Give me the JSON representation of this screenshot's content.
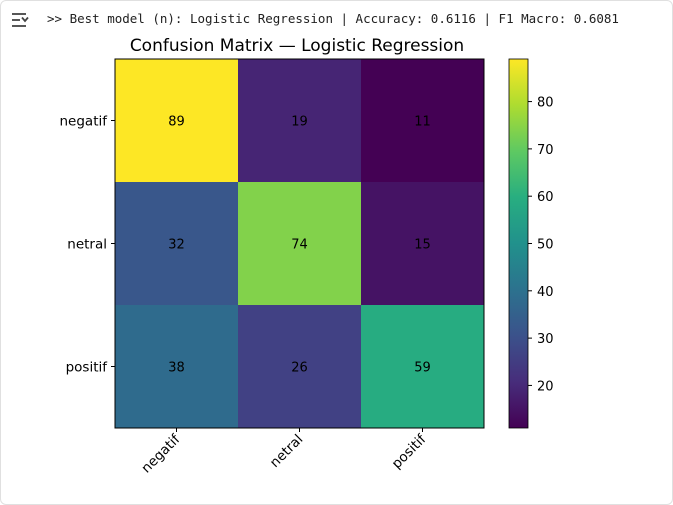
{
  "output": {
    "toggle_icon": "collapse-output-icon",
    "log_text": ">> Best model (n): Logistic Regression | Accuracy: 0.6116 | F1 Macro: 0.6081"
  },
  "chart_data": {
    "type": "heatmap",
    "title": "Confusion Matrix — Logistic Regression",
    "row_labels": [
      "negatif",
      "netral",
      "positif"
    ],
    "col_labels": [
      "negatif",
      "netral",
      "positif"
    ],
    "matrix": [
      [
        89,
        19,
        11
      ],
      [
        32,
        74,
        15
      ],
      [
        38,
        26,
        59
      ]
    ],
    "colormap": "viridis",
    "vmin": 11,
    "vmax": 89,
    "colorbar_ticks": [
      20,
      30,
      40,
      50,
      60,
      70,
      80
    ],
    "xlabel": "",
    "ylabel": ""
  }
}
